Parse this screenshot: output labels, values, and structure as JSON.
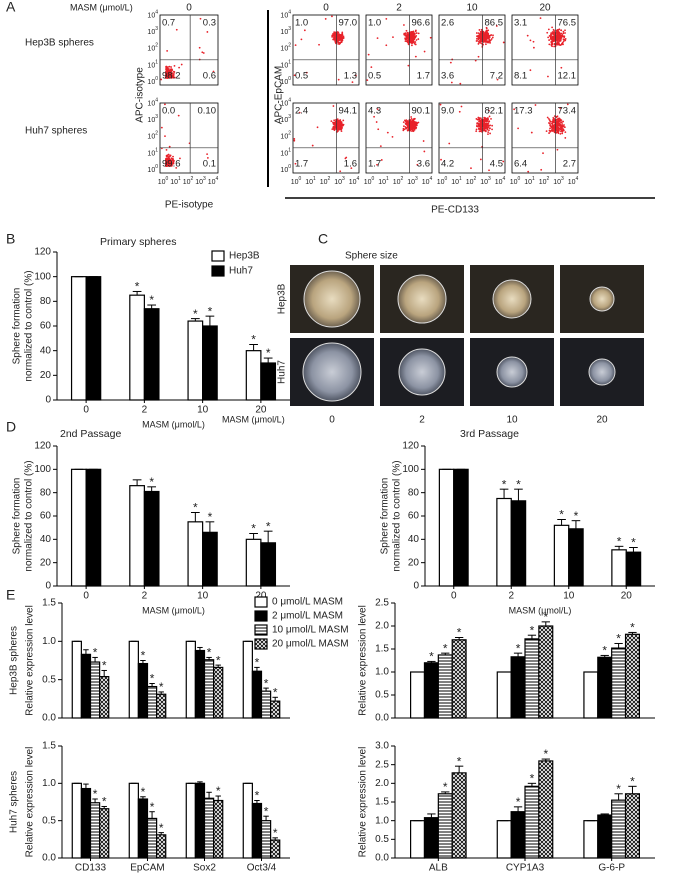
{
  "panels": [
    "A",
    "B",
    "C",
    "D",
    "E"
  ],
  "flow": {
    "header": "MASM (μmol/L)",
    "row_labels": [
      "Hep3B spheres",
      "Huh7 spheres"
    ],
    "tick_base": "10",
    "tick_exponents": [
      "0",
      "1",
      "2",
      "3",
      "4"
    ],
    "isotype": {
      "dose": "0",
      "y_label": "APC-isotype",
      "x_label": "PE-isotype",
      "rows": [
        [
          "0.7",
          "0.3",
          "98.2",
          "0.6"
        ],
        [
          "0.0",
          "0.10",
          "99.6",
          "0.1"
        ]
      ]
    },
    "cd133": {
      "doses": [
        "0",
        "2",
        "10",
        "20"
      ],
      "y_label": "APC-EpCAM",
      "x_label": "PE-CD133",
      "rows": [
        [
          [
            "1.0",
            "97.0",
            "0.5",
            "1.3"
          ],
          [
            "1.0",
            "96.6",
            "0.5",
            "1.7"
          ],
          [
            "2.6",
            "86.5",
            "3.6",
            "7.2"
          ],
          [
            "3.1",
            "76.5",
            "8.1",
            "12.1"
          ]
        ],
        [
          [
            "2.4",
            "94.1",
            "1.7",
            "1.6"
          ],
          [
            "4.3",
            "90.1",
            "1.7",
            "3.6"
          ],
          [
            "9.0",
            "82.1",
            "4.2",
            "4.5"
          ],
          [
            "17.3",
            "73.4",
            "6.4",
            "2.7"
          ]
        ]
      ]
    }
  },
  "sphere_size": {
    "title": "Sphere size",
    "row_labels": [
      "Hep3B",
      "Huh7"
    ],
    "x_label": "MASM (μmol/L)",
    "doses": [
      "0",
      "2",
      "10",
      "20"
    ]
  },
  "chart_data": [
    {
      "type": "bar",
      "title": "Primary spheres",
      "y_label": [
        "Sphere formation",
        "normalized to control (%)"
      ],
      "x_label": "MASM (μmol/L)",
      "categories": [
        "0",
        "2",
        "10",
        "20"
      ],
      "series": [
        {
          "name": "Hep3B",
          "color": "#ffffff",
          "values": [
            100,
            85,
            64,
            40
          ],
          "errors": [
            0,
            3,
            2,
            5
          ],
          "significant": [
            false,
            true,
            true,
            true
          ]
        },
        {
          "name": "Huh7",
          "color": "#000000",
          "values": [
            100,
            74,
            60,
            30
          ],
          "errors": [
            0,
            3,
            8,
            4
          ],
          "significant": [
            false,
            true,
            true,
            true
          ]
        }
      ],
      "ylim": [
        0,
        120
      ],
      "yticks": [
        0,
        20,
        40,
        60,
        80,
        100,
        120
      ],
      "significance_mark": "*"
    },
    {
      "type": "bar",
      "title": "2nd Passage",
      "y_label": [
        "Sphere formation",
        "normalized to control (%)"
      ],
      "x_label": "MASM (μmol/L)",
      "categories": [
        "0",
        "2",
        "10",
        "20"
      ],
      "series": [
        {
          "color": "#ffffff",
          "values": [
            100,
            86,
            55,
            40
          ],
          "errors": [
            0,
            5,
            8,
            5
          ],
          "significant": [
            false,
            false,
            true,
            true
          ]
        },
        {
          "color": "#000000",
          "values": [
            100,
            81,
            46,
            37
          ],
          "errors": [
            0,
            4,
            9,
            10
          ],
          "significant": [
            false,
            true,
            true,
            true
          ]
        }
      ],
      "ylim": [
        0,
        120
      ],
      "yticks": [
        0,
        20,
        40,
        60,
        80,
        100,
        120
      ],
      "significance_mark": "*"
    },
    {
      "type": "bar",
      "title": "3rd Passage",
      "y_label": [
        "Sphere formation",
        "normalized to control (%)"
      ],
      "x_label": "MASM (μmol/L)",
      "categories": [
        "0",
        "2",
        "10",
        "20"
      ],
      "series": [
        {
          "color": "#ffffff",
          "values": [
            100,
            75,
            52,
            31
          ],
          "errors": [
            0,
            8,
            5,
            3
          ],
          "significant": [
            false,
            true,
            true,
            true
          ]
        },
        {
          "color": "#000000",
          "values": [
            100,
            73,
            49,
            29
          ],
          "errors": [
            0,
            10,
            7,
            4
          ],
          "significant": [
            false,
            true,
            true,
            true
          ]
        }
      ],
      "ylim": [
        0,
        120
      ],
      "yticks": [
        0,
        20,
        40,
        60,
        80,
        100,
        120
      ],
      "significance_mark": "*"
    },
    {
      "type": "bar",
      "row_label": "Hep3B spheres",
      "y_label": "Relative expression level",
      "series": [
        {
          "name": "0 μmol/L MASM",
          "color": "#ffffff",
          "pattern": "solid",
          "values": [
            1,
            1,
            1,
            1
          ],
          "errors": [
            0,
            0,
            0,
            0
          ],
          "significant": [
            false,
            false,
            false,
            false
          ]
        },
        {
          "name": "2 μmol/L MASM",
          "color": "#000000",
          "pattern": "solid",
          "values": [
            0.83,
            0.71,
            0.88,
            0.61
          ],
          "errors": [
            0.06,
            0.04,
            0.04,
            0.05
          ],
          "significant": [
            false,
            true,
            false,
            true
          ]
        },
        {
          "name": "10 μmol/L MASM",
          "color": "#ffffff",
          "pattern": "hstripe",
          "values": [
            0.73,
            0.41,
            0.76,
            0.35
          ],
          "errors": [
            0.06,
            0.04,
            0.03,
            0.04
          ],
          "significant": [
            true,
            true,
            true,
            true
          ]
        },
        {
          "name": "20 μmol/L MASM",
          "color": "#ffffff",
          "pattern": "crosshatch",
          "values": [
            0.54,
            0.31,
            0.66,
            0.22
          ],
          "errors": [
            0.08,
            0.03,
            0.03,
            0.05
          ],
          "significant": [
            true,
            true,
            true,
            true
          ]
        }
      ],
      "ylim": [
        0,
        1.5
      ],
      "yticks": [
        {
          "value": 0,
          "label": "0.0"
        },
        0.5,
        {
          "value": 1,
          "label": "1.0"
        },
        1.5
      ],
      "significance_mark": "*"
    },
    {
      "type": "bar",
      "y_label": "Relative expression level",
      "series": [
        {
          "color": "#ffffff",
          "pattern": "solid",
          "values": [
            1,
            1,
            1
          ],
          "errors": [
            0,
            0,
            0
          ],
          "significant": [
            false,
            false,
            false
          ]
        },
        {
          "color": "#000000",
          "pattern": "solid",
          "values": [
            1.2,
            1.33,
            1.32
          ],
          "errors": [
            0.03,
            0.08,
            0.04
          ],
          "significant": [
            true,
            true,
            true
          ]
        },
        {
          "color": "#ffffff",
          "pattern": "hstripe",
          "values": [
            1.37,
            1.72,
            1.52
          ],
          "errors": [
            0.04,
            0.08,
            0.1
          ],
          "significant": [
            true,
            true,
            true
          ]
        },
        {
          "color": "#ffffff",
          "pattern": "crosshatch",
          "values": [
            1.7,
            2.0,
            1.82
          ],
          "errors": [
            0.05,
            0.09,
            0.04
          ],
          "significant": [
            true,
            true,
            true
          ]
        }
      ],
      "ylim": [
        0,
        2.5
      ],
      "yticks": [
        {
          "value": 0,
          "label": "0.0"
        },
        0.5,
        {
          "value": 1,
          "label": "1.0"
        },
        1.5,
        {
          "value": 2,
          "label": "2.0"
        },
        2.5
      ],
      "significance_mark": "*"
    },
    {
      "type": "bar",
      "row_label": "Huh7 spheres",
      "y_label": "Relative expression level",
      "categories": [
        "CD133",
        "EpCAM",
        "Sox2",
        "Oct3/4"
      ],
      "series": [
        {
          "color": "#ffffff",
          "pattern": "solid",
          "values": [
            1,
            1,
            1,
            1
          ],
          "errors": [
            0,
            0,
            0,
            0
          ],
          "significant": [
            false,
            false,
            false,
            false
          ]
        },
        {
          "color": "#000000",
          "pattern": "solid",
          "values": [
            0.93,
            0.79,
            1.0,
            0.73
          ],
          "errors": [
            0.06,
            0.03,
            0.02,
            0.04
          ],
          "significant": [
            false,
            true,
            false,
            true
          ]
        },
        {
          "color": "#ffffff",
          "pattern": "hstripe",
          "values": [
            0.74,
            0.53,
            0.8,
            0.5
          ],
          "errors": [
            0.05,
            0.09,
            0.08,
            0.06
          ],
          "significant": [
            true,
            true,
            false,
            true
          ]
        },
        {
          "color": "#ffffff",
          "pattern": "crosshatch",
          "values": [
            0.66,
            0.31,
            0.77,
            0.24
          ],
          "errors": [
            0.03,
            0.03,
            0.06,
            0.03
          ],
          "significant": [
            true,
            true,
            true,
            true
          ]
        }
      ],
      "ylim": [
        0,
        1.5
      ],
      "yticks": [
        {
          "value": 0,
          "label": "0.0"
        },
        0.5,
        {
          "value": 1,
          "label": "1.0"
        },
        1.5
      ],
      "significance_mark": "*"
    },
    {
      "type": "bar",
      "y_label": "Relative expression level",
      "categories": [
        "ALB",
        "CYP1A3",
        "G-6-P"
      ],
      "series": [
        {
          "color": "#ffffff",
          "pattern": "solid",
          "values": [
            1,
            1,
            1
          ],
          "errors": [
            0,
            0,
            0
          ],
          "significant": [
            false,
            false,
            false
          ]
        },
        {
          "color": "#000000",
          "pattern": "solid",
          "values": [
            1.08,
            1.24,
            1.15
          ],
          "errors": [
            0.1,
            0.13,
            0.03
          ],
          "significant": [
            false,
            true,
            false
          ]
        },
        {
          "color": "#ffffff",
          "pattern": "hstripe",
          "values": [
            1.72,
            1.92,
            1.55
          ],
          "errors": [
            0.05,
            0.08,
            0.17
          ],
          "significant": [
            true,
            true,
            true
          ]
        },
        {
          "color": "#ffffff",
          "pattern": "crosshatch",
          "values": [
            2.28,
            2.6,
            1.72
          ],
          "errors": [
            0.18,
            0.05,
            0.2
          ],
          "significant": [
            true,
            true,
            true
          ]
        }
      ],
      "ylim": [
        0,
        3
      ],
      "yticks": [
        {
          "value": 0,
          "label": "0.0"
        },
        0.5,
        {
          "value": 1,
          "label": "1.0"
        },
        1.5,
        {
          "value": 2,
          "label": "2.0"
        },
        2.5,
        {
          "value": 3,
          "label": "3.0"
        }
      ],
      "significance_mark": "*"
    }
  ]
}
